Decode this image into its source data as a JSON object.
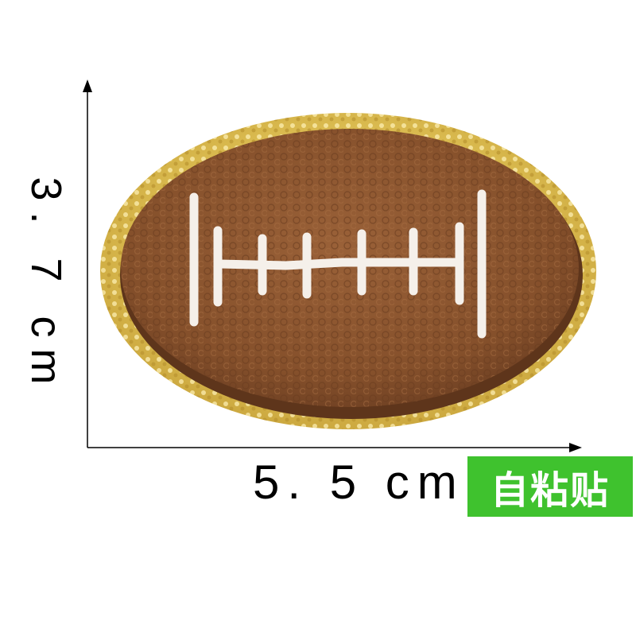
{
  "dimensions": {
    "height_label": "3. 7 cm",
    "width_label": "5. 5 cm"
  },
  "badge": {
    "text": "自粘贴",
    "color": "#3fc22e"
  },
  "patch": {
    "subject": "american-football",
    "colors": {
      "glitter_border": "#d6b54a",
      "chenille": "#8a5530",
      "laces": "#f5f0ea"
    }
  }
}
